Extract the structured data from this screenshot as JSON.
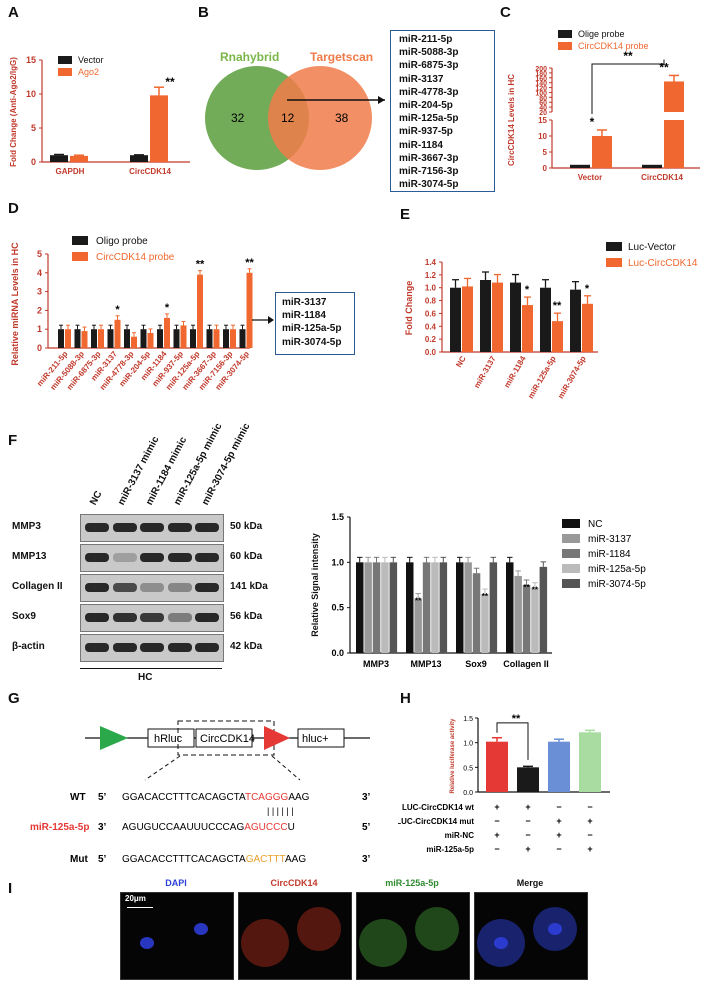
{
  "colors": {
    "black": "#1a1a1a",
    "orange": "#f0682f",
    "green": "#6aa84f",
    "venn_orange": "#f07b49",
    "red": "#e53935",
    "blue": "#6b8fd6",
    "lightgreen": "#a8dca0",
    "gray_dark": "#555555",
    "gray_mid": "#888888",
    "gray_light": "#bbbbbb",
    "axis_red": "#c0392b",
    "box_blue": "#2b5a96"
  },
  "panels": {
    "A": "A",
    "B": "B",
    "C": "C",
    "D": "D",
    "E": "E",
    "F": "F",
    "G": "G",
    "H": "H",
    "I": "I"
  },
  "panelA": {
    "chart_data": {
      "type": "bar",
      "categories": [
        "GAPDH",
        "CircCDK14"
      ],
      "series": [
        {
          "name": "Vector",
          "values": [
            1.0,
            1.0
          ]
        },
        {
          "name": "Ago2",
          "values": [
            0.9,
            9.8
          ]
        }
      ],
      "errors": [
        [
          0.1,
          0.1
        ],
        [
          0.05,
          1.2
        ]
      ],
      "ylabel": "Fold Change (Anti-Ago2/IgG)",
      "ylim": [
        0,
        15
      ],
      "yticks": [
        "0",
        "5",
        "10",
        "15"
      ],
      "annotations": [
        "**"
      ],
      "legend": "top-left"
    }
  },
  "panelB": {
    "left_label": "Rnahybrid",
    "right_label": "Targetscan",
    "left_only": "32",
    "overlap": "12",
    "right_only": "38",
    "mirnas": [
      "miR-211-5p",
      "miR-5088-3p",
      "miR-6875-3p",
      "miR-3137",
      "miR-4778-3p",
      "miR-204-5p",
      "miR-125a-5p",
      "miR-937-5p",
      "miR-1184",
      "miR-3667-3p",
      "miR-7156-3p",
      "miR-3074-5p"
    ]
  },
  "panelC": {
    "chart_data": {
      "type": "bar",
      "categories": [
        "Vector",
        "CircCDK14"
      ],
      "series": [
        {
          "name": "Olige probe",
          "values": [
            1,
            1
          ]
        },
        {
          "name": "CircCDK14 probe",
          "values": [
            10,
            145
          ]
        }
      ],
      "ylabel": "CircCDK14 Levels in HC",
      "yticks_low": [
        "0",
        "5",
        "10",
        "15"
      ],
      "yticks_high": [
        "20",
        "40",
        "60",
        "80",
        "100",
        "120",
        "140",
        "160",
        "180",
        "200"
      ],
      "annotations": [
        "*",
        "**",
        "**"
      ],
      "legend": "top-left"
    }
  },
  "panelD": {
    "chart_data": {
      "type": "bar",
      "categories": [
        "miR-211-5p",
        "miR-5088-3p",
        "miR-6875-3p",
        "miR-3137",
        "miR-4778-3p",
        "miR-204-5p",
        "miR-1184",
        "miR-937-5p",
        "miR-125a-5p",
        "miR-3667-3p",
        "miR-7156-3p",
        "miR-3074-5p"
      ],
      "series": [
        {
          "name": "Oligo probe",
          "values": [
            1,
            1,
            1,
            1,
            1,
            1,
            1,
            1,
            1,
            1,
            1,
            1
          ]
        },
        {
          "name": "CircCDK14 probe",
          "values": [
            1.0,
            0.9,
            1.0,
            1.5,
            0.6,
            0.8,
            1.6,
            1.2,
            3.9,
            1.0,
            1.0,
            4.0
          ]
        }
      ],
      "ylabel": "Relative miRNA Levels in HC",
      "ylim": [
        0,
        5
      ],
      "yticks": [
        "0",
        "1",
        "2",
        "3",
        "4",
        "5"
      ],
      "stars": [
        "",
        "",
        "",
        "*",
        "",
        "",
        "*",
        "",
        "**",
        "",
        "",
        "**"
      ],
      "legend": "top-left"
    },
    "selected": [
      "miR-3137",
      "miR-1184",
      "miR-125a-5p",
      "miR-3074-5p"
    ]
  },
  "panelE": {
    "chart_data": {
      "type": "bar",
      "categories": [
        "NC",
        "miR-3137",
        "miR-1184",
        "miR-125a-5p",
        "miR-3074-5p"
      ],
      "series": [
        {
          "name": "Luc-Vector",
          "values": [
            1.0,
            1.12,
            1.08,
            1.0,
            0.97
          ]
        },
        {
          "name": "Luc-CircCDK14",
          "values": [
            1.02,
            1.08,
            0.73,
            0.48,
            0.75
          ]
        }
      ],
      "ylabel": "Fold Change",
      "ylim": [
        0,
        1.4
      ],
      "yticks": [
        "0.0",
        "0.2",
        "0.4",
        "0.6",
        "0.8",
        "1.0",
        "1.2",
        "1.4"
      ],
      "stars": [
        "",
        "",
        "*",
        "**",
        "*"
      ],
      "legend": "top-right"
    }
  },
  "panelF": {
    "lanes": [
      "NC",
      "miR-3137 mimic",
      "miR-1184 mimic",
      "miR-125a-5p mimic",
      "miR-3074-5p mimic"
    ],
    "bands": [
      {
        "name": "MMP3",
        "kda": "50 kDa"
      },
      {
        "name": "MMP13",
        "kda": "60 kDa"
      },
      {
        "name": "Collagen II",
        "kda": "141 kDa"
      },
      {
        "name": "Sox9",
        "kda": "56 kDa"
      },
      {
        "name": "β-actin",
        "kda": "42 kDa"
      }
    ],
    "group": "HC",
    "chart_data": {
      "type": "bar",
      "categories": [
        "MMP3",
        "MMP13",
        "Sox9",
        "Collagen II"
      ],
      "series": [
        {
          "name": "NC",
          "values": [
            1.0,
            1.0,
            1.0,
            1.0
          ]
        },
        {
          "name": "miR-3137",
          "values": [
            1.0,
            0.6,
            1.0,
            0.85
          ]
        },
        {
          "name": "miR-1184",
          "values": [
            1.0,
            1.0,
            0.88,
            0.75
          ]
        },
        {
          "name": "miR-125a-5p",
          "values": [
            1.0,
            1.0,
            0.65,
            0.72
          ]
        },
        {
          "name": "miR-3074-5p",
          "values": [
            1.0,
            1.0,
            1.0,
            0.95
          ]
        }
      ],
      "ylabel": "Relative Signal intensity",
      "ylim": [
        0,
        1.5
      ],
      "yticks": [
        "0.0",
        "0.5",
        "1.0",
        "1.5"
      ],
      "stars": [
        [
          "",
          "",
          "",
          ""
        ],
        [
          "",
          "**",
          "",
          ""
        ],
        [
          "",
          "",
          "",
          "**"
        ],
        [
          "",
          "",
          "**",
          "**"
        ],
        [
          "",
          "",
          "",
          ""
        ]
      ],
      "legend": "right"
    }
  },
  "panelG": {
    "hrluc": "hRluc",
    "circ": "CircCDK14",
    "hluc": "hluc+",
    "wt_label": "WT",
    "wt_5": "5’",
    "wt_seq_a": "GGACACCTTTCACAGCTA",
    "wt_seq_b": "TCAGGG",
    "wt_seq_c": "AAG",
    "wt_3": "3’",
    "bars": "| | | | | |",
    "mir_label": "miR-125a-5p",
    "mir_3": "3’",
    "mir_seq_a": "AGUGUCCAAUUUCCCAG",
    "mir_seq_b": "AGUCCC",
    "mir_seq_c": "U",
    "mir_5": "5’",
    "mut_label": "Mut",
    "mut_5": "5’",
    "mut_seq_a": "GGACACCTTTCACAGCTA",
    "mut_seq_b": "GACTTT",
    "mut_seq_c": "AAG",
    "mut_3": "3’"
  },
  "panelH": {
    "chart_data": {
      "type": "bar",
      "categories": [
        "1",
        "2",
        "3",
        "4"
      ],
      "values": [
        1.02,
        0.5,
        1.02,
        1.21
      ],
      "errors": [
        0.08,
        0.02,
        0.05,
        0.04
      ],
      "ylabel": "Relative luciferase activity",
      "ylim": [
        0,
        1.5
      ],
      "yticks": [
        "0.0",
        "0.5",
        "1.0",
        "1.5"
      ],
      "annotations": [
        "**"
      ]
    },
    "rows": [
      {
        "label": "LUC-CircCDK14 wt",
        "signs": [
          "+",
          "+",
          "−",
          "−"
        ]
      },
      {
        "label": "LUC-CircCDK14 mut",
        "signs": [
          "−",
          "−",
          "+",
          "+"
        ]
      },
      {
        "label": "miR-NC",
        "signs": [
          "+",
          "−",
          "+",
          "−"
        ]
      },
      {
        "label": "miR-125a-5p",
        "signs": [
          "−",
          "+",
          "−",
          "+"
        ]
      }
    ]
  },
  "panelI": {
    "titles": [
      "DAPI",
      "CircCDK14",
      "miR-125a-5p",
      "Merge"
    ],
    "scale": "20μm"
  }
}
